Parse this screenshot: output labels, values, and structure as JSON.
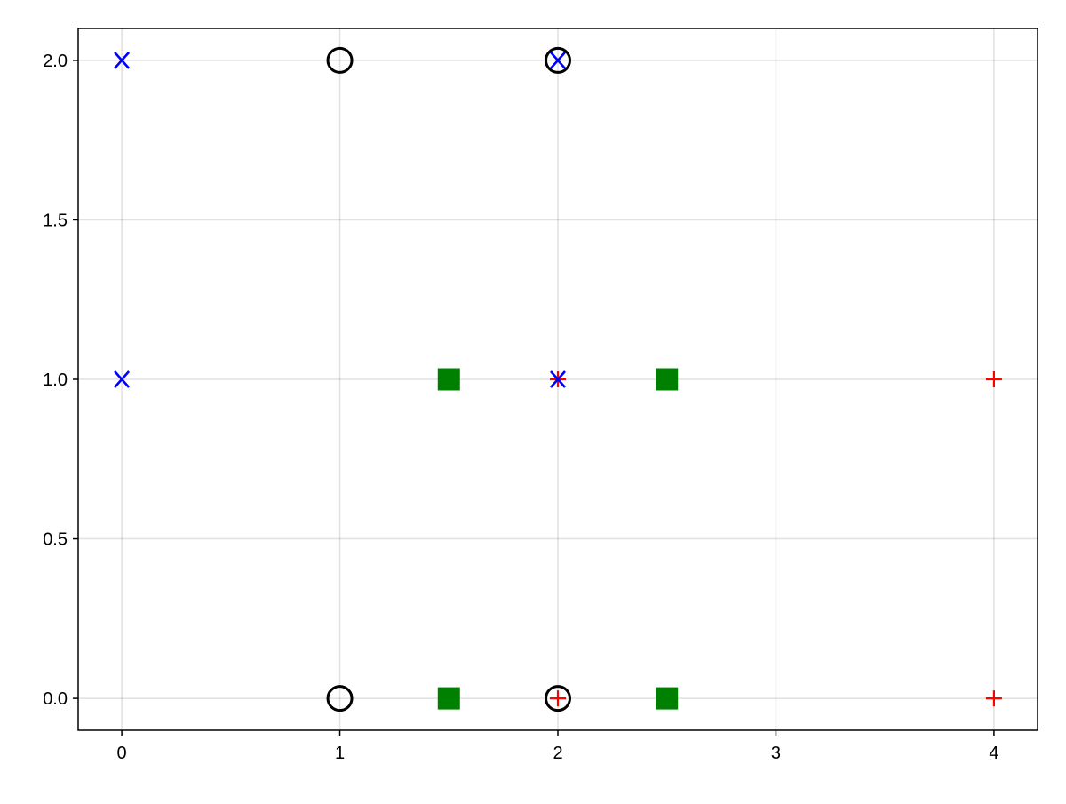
{
  "chart_data": {
    "type": "scatter",
    "title": "",
    "xlabel": "",
    "ylabel": "",
    "xlim": [
      -0.2,
      4.2
    ],
    "ylim": [
      -0.1,
      2.1
    ],
    "grid": true,
    "x_ticks": [
      0,
      1,
      2,
      3,
      4
    ],
    "x_tick_labels": [
      "0",
      "1",
      "2",
      "3",
      "4"
    ],
    "y_ticks": [
      0,
      0.5,
      1,
      1.5,
      2
    ],
    "y_tick_labels": [
      "0.0",
      "0.5",
      "1.0",
      "1.5",
      "2.0"
    ],
    "series": [
      {
        "marker": "circle-open",
        "color": "#000000",
        "points": [
          [
            1,
            2
          ],
          [
            2,
            2
          ],
          [
            1,
            0
          ],
          [
            2,
            0
          ]
        ]
      },
      {
        "marker": "square",
        "color": "#008000",
        "points": [
          [
            1.5,
            1
          ],
          [
            2.5,
            1
          ],
          [
            1.5,
            0
          ],
          [
            2.5,
            0
          ]
        ]
      },
      {
        "marker": "plus",
        "color": "#ff0000",
        "points": [
          [
            2,
            1
          ],
          [
            4,
            1
          ],
          [
            2,
            0
          ],
          [
            4,
            0
          ]
        ]
      },
      {
        "marker": "x",
        "color": "#0000ff",
        "points": [
          [
            0,
            2
          ],
          [
            0,
            1
          ],
          [
            2,
            2
          ],
          [
            2,
            1
          ]
        ]
      }
    ]
  }
}
